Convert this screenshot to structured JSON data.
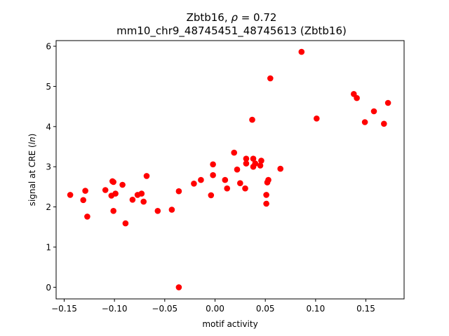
{
  "chart_data": {
    "type": "scatter",
    "title_line1": "Zbtb16, ρ = 0.72",
    "title_line2": "mm10_chr9_48745451_48745613 (Zbtb16)",
    "xlabel": "motif activity",
    "ylabel": "signal at CRE (ln)",
    "xlim": [
      -0.158,
      0.188
    ],
    "ylim": [
      -0.29,
      6.14
    ],
    "xticks": [
      -0.15,
      -0.1,
      -0.05,
      0.0,
      0.05,
      0.1,
      0.15
    ],
    "xtick_labels": [
      "−0.15",
      "−0.10",
      "−0.05",
      "0.00",
      "0.05",
      "0.10",
      "0.15"
    ],
    "yticks": [
      0,
      1,
      2,
      3,
      4,
      5,
      6
    ],
    "ytick_labels": [
      "0",
      "1",
      "2",
      "3",
      "4",
      "5",
      "6"
    ],
    "grid": false,
    "marker_color": "#ff0000",
    "points": [
      [
        -0.144,
        2.3
      ],
      [
        -0.131,
        2.17
      ],
      [
        -0.129,
        2.4
      ],
      [
        -0.127,
        1.76
      ],
      [
        -0.109,
        2.42
      ],
      [
        -0.103,
        2.28
      ],
      [
        -0.102,
        2.64
      ],
      [
        -0.101,
        2.62
      ],
      [
        -0.101,
        1.9
      ],
      [
        -0.099,
        2.33
      ],
      [
        -0.092,
        2.55
      ],
      [
        -0.089,
        1.59
      ],
      [
        -0.082,
        2.18
      ],
      [
        -0.077,
        2.3
      ],
      [
        -0.073,
        2.33
      ],
      [
        -0.071,
        2.13
      ],
      [
        -0.068,
        2.77
      ],
      [
        -0.057,
        1.9
      ],
      [
        -0.043,
        1.93
      ],
      [
        -0.036,
        2.39
      ],
      [
        -0.036,
        0.0
      ],
      [
        -0.021,
        2.58
      ],
      [
        -0.014,
        2.67
      ],
      [
        -0.004,
        2.29
      ],
      [
        -0.002,
        2.79
      ],
      [
        -0.002,
        3.06
      ],
      [
        0.01,
        2.67
      ],
      [
        0.012,
        2.46
      ],
      [
        0.019,
        3.35
      ],
      [
        0.022,
        2.93
      ],
      [
        0.025,
        2.59
      ],
      [
        0.03,
        2.46
      ],
      [
        0.031,
        3.2
      ],
      [
        0.031,
        3.08
      ],
      [
        0.037,
        4.17
      ],
      [
        0.038,
        3.2
      ],
      [
        0.038,
        3.0
      ],
      [
        0.04,
        3.08
      ],
      [
        0.045,
        3.03
      ],
      [
        0.046,
        3.15
      ],
      [
        0.051,
        2.3
      ],
      [
        0.051,
        2.08
      ],
      [
        0.052,
        2.61
      ],
      [
        0.053,
        2.67
      ],
      [
        0.055,
        5.2
      ],
      [
        0.065,
        2.95
      ],
      [
        0.086,
        5.86
      ],
      [
        0.101,
        4.2
      ],
      [
        0.138,
        4.81
      ],
      [
        0.141,
        4.71
      ],
      [
        0.149,
        4.11
      ],
      [
        0.158,
        4.38
      ],
      [
        0.168,
        4.07
      ],
      [
        0.172,
        4.59
      ]
    ]
  }
}
